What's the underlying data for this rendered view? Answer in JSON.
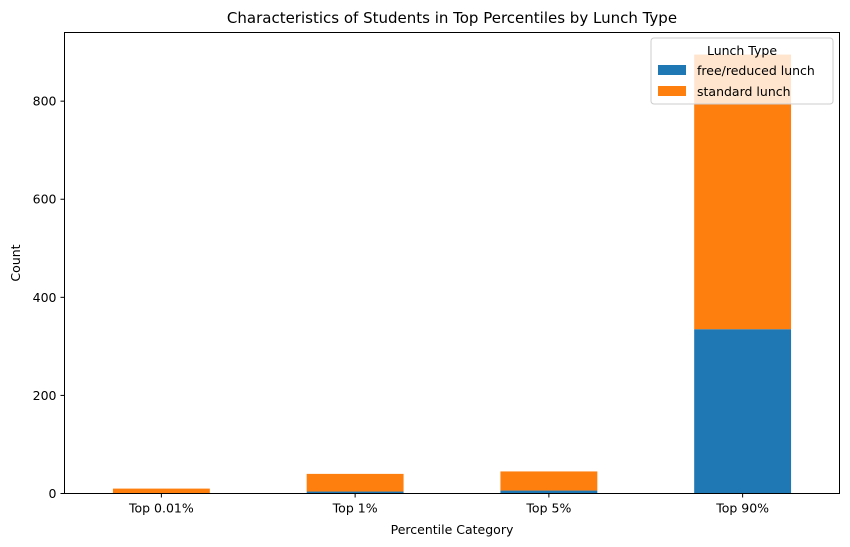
{
  "chart_data": {
    "type": "bar",
    "stacked": true,
    "title": "Characteristics of Students in Top Percentiles by Lunch Type",
    "xlabel": "Percentile Category",
    "ylabel": "Count",
    "categories": [
      "Top 0.01%",
      "Top 1%",
      "Top 5%",
      "Top 90%"
    ],
    "series": [
      {
        "name": "free/reduced lunch",
        "color": "#1f77b4",
        "values": [
          1,
          4,
          6,
          335
        ]
      },
      {
        "name": "standard lunch",
        "color": "#ff7f0e",
        "values": [
          9,
          36,
          39,
          560
        ]
      }
    ],
    "ylim": [
      0,
      940
    ],
    "yticks": [
      0,
      200,
      400,
      600,
      800
    ],
    "grid": false,
    "legend": {
      "title": "Lunch Type",
      "placement": "top-right"
    }
  }
}
